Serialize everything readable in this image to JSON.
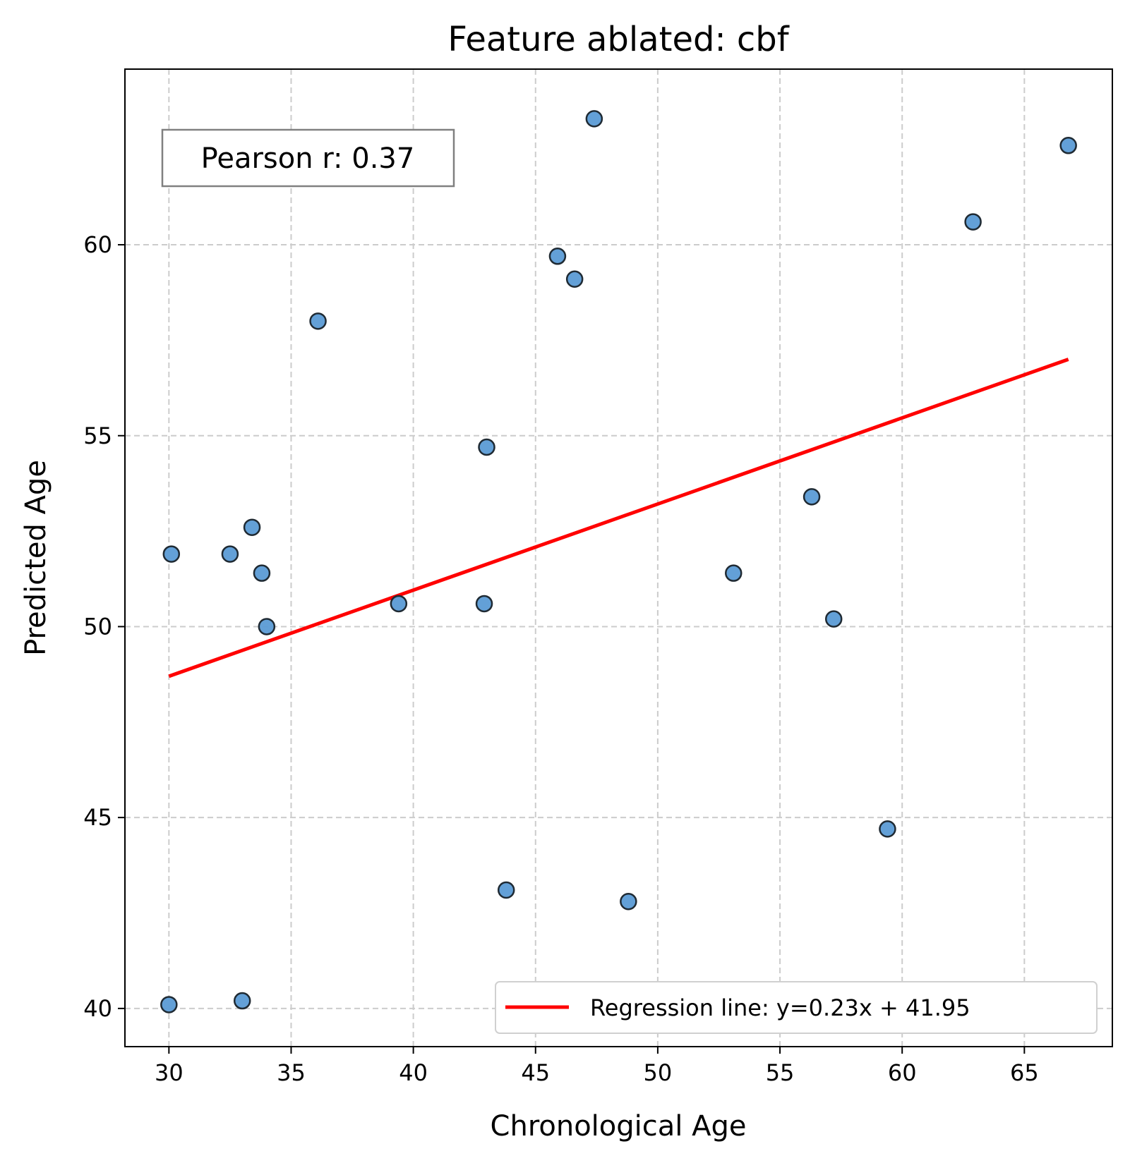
{
  "chart_data": {
    "type": "scatter",
    "title": "Feature ablated: cbf",
    "xlabel": "Chronological Age",
    "ylabel": "Predicted Age",
    "xlim": [
      28.2,
      68.6
    ],
    "ylim": [
      39.0,
      64.6
    ],
    "xticks": [
      30,
      35,
      40,
      45,
      50,
      55,
      60,
      65
    ],
    "yticks": [
      40,
      45,
      50,
      55,
      60
    ],
    "grid": true,
    "grid_style": "dashed",
    "legend_position": "lower-right",
    "colors": {
      "points": "#5b9bd5",
      "point_edge": "#1f2a33",
      "regression": "#ff0000",
      "grid": "#cccccc",
      "annotation_border": "#808080"
    },
    "annotation": "Pearson r: 0.37",
    "series": [
      {
        "kind": "points",
        "x": [
          30.0,
          33.0,
          30.1,
          32.5,
          33.4,
          33.8,
          34.0,
          36.1,
          39.4,
          42.9,
          43.0,
          43.8,
          45.9,
          46.6,
          47.4,
          48.8,
          53.1,
          56.3,
          57.2,
          59.4,
          62.9,
          66.8
        ],
        "y": [
          40.1,
          40.2,
          51.9,
          51.9,
          52.6,
          51.4,
          50.0,
          58.0,
          50.6,
          50.6,
          54.7,
          43.1,
          59.7,
          59.1,
          63.3,
          42.8,
          51.4,
          53.4,
          50.2,
          44.7,
          60.6,
          62.6
        ]
      },
      {
        "kind": "line",
        "name": "Regression line: y=0.23x + 41.95",
        "x": [
          30.0,
          66.8
        ],
        "y": [
          48.7,
          57.0
        ]
      }
    ]
  }
}
